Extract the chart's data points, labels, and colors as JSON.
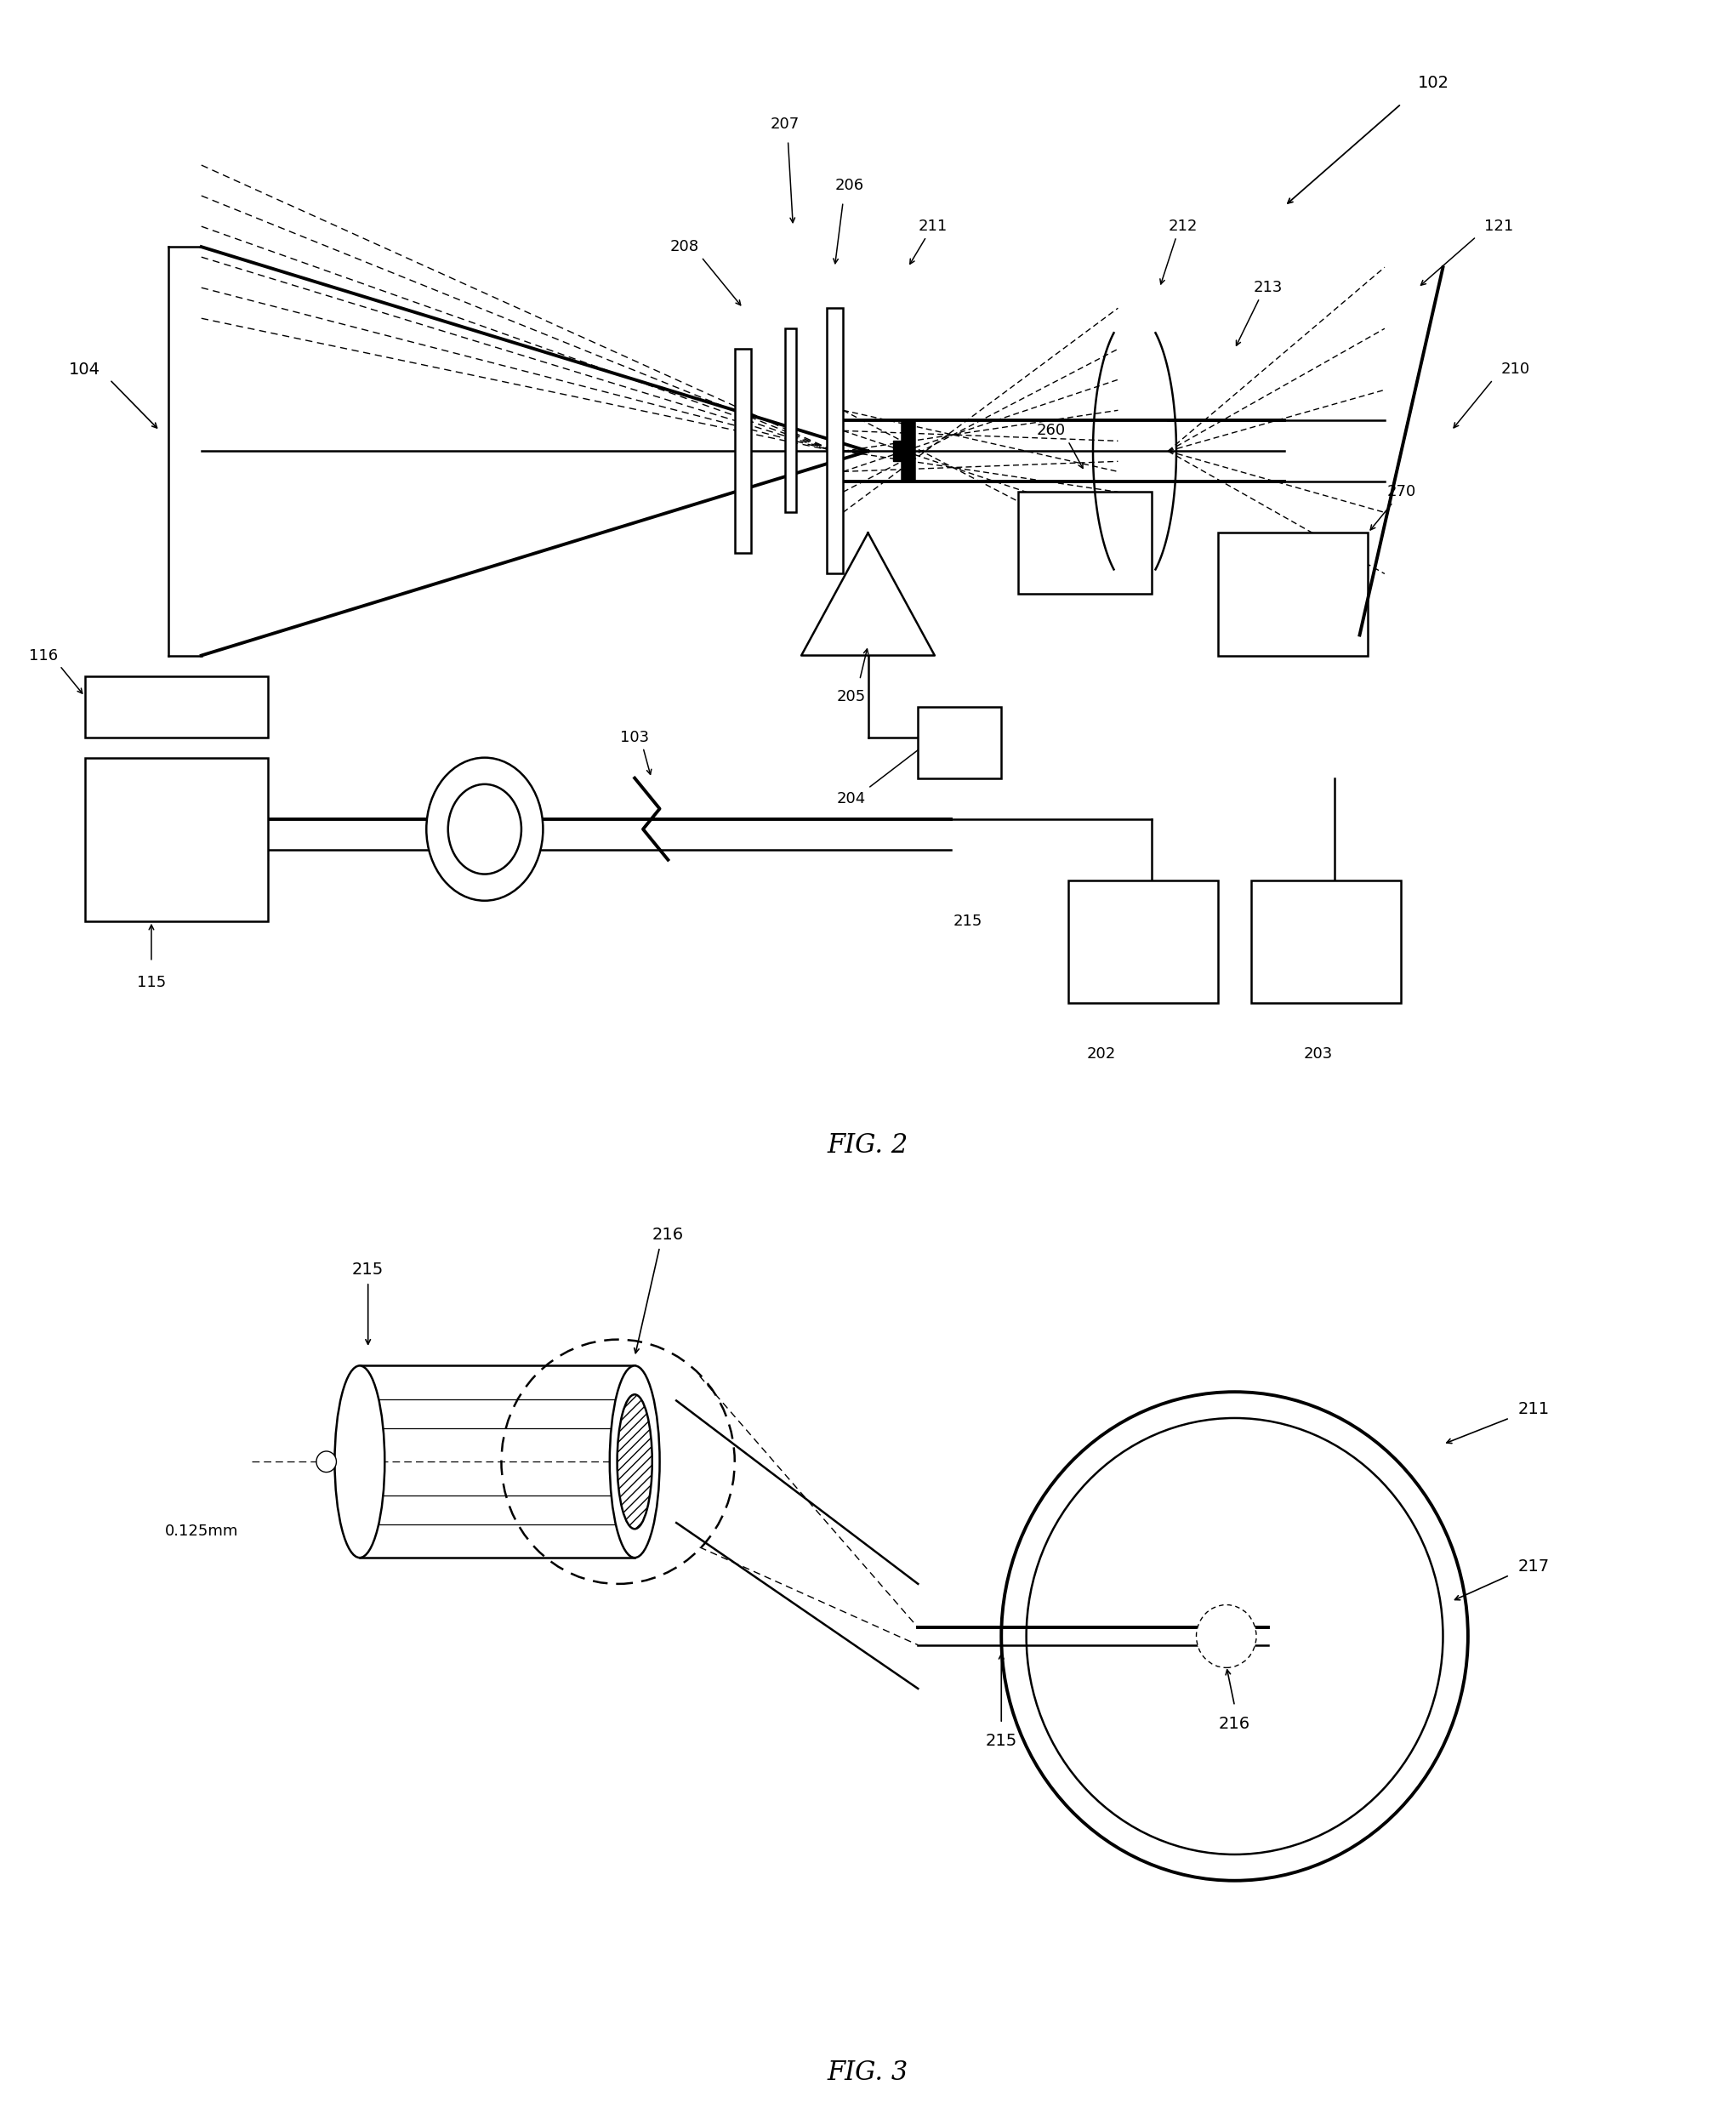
{
  "fig_width": 20.41,
  "fig_height": 24.98,
  "bg_color": "#ffffff",
  "lc": "#000000",
  "fig2_title": "FIG. 2",
  "fig3_title": "FIG. 3",
  "labels": {
    "102": "102",
    "104": "104",
    "103": "103",
    "115": "115",
    "116": "116",
    "121": "121",
    "202": "202",
    "203": "203",
    "204": "204",
    "205": "205",
    "206": "206",
    "207": "207",
    "208": "208",
    "210": "210",
    "211": "211",
    "212": "212",
    "213": "213",
    "215": "215",
    "260": "260",
    "270": "270",
    "216": "216",
    "217": "217",
    "0125mm": "0.125mm"
  }
}
